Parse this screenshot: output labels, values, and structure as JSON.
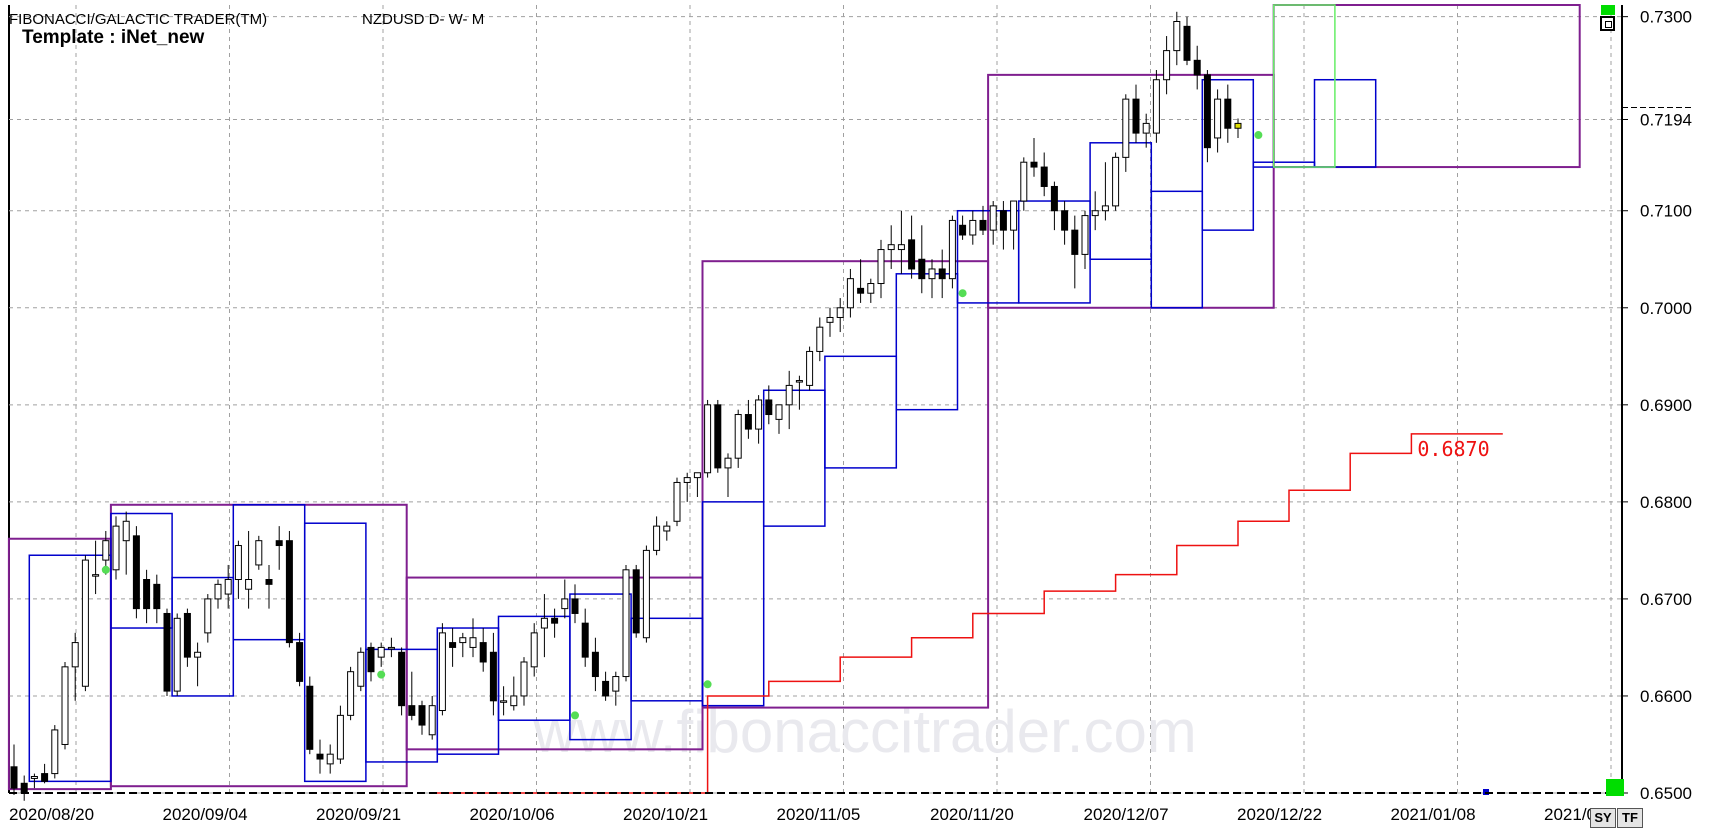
{
  "header": {
    "app_title": "FIBONACCI/GALACTIC TRADER(TM)",
    "symbol_info": "NZDUSD D- W- M",
    "template_label": "Template : iNet_new"
  },
  "watermark": "www.fibonaccitrader.com",
  "buttons": {
    "sy": "SY",
    "tf": "TF"
  },
  "colors": {
    "background": "#ffffff",
    "grid": "#a0a0a0",
    "bull_candle": "#ffffff",
    "bear_candle": "#000000",
    "box_daily": "#0000cc",
    "box_weekly": "#7f1f8f",
    "box_current": "#66ee66",
    "step_line": "#ee1111",
    "step_label": "#ee1111",
    "marker": "#55dd55",
    "current_candle": "#dddd00"
  },
  "chart_data": {
    "type": "candlestick",
    "y_axis": {
      "min": 0.65,
      "max": 0.7312,
      "ticks": [
        "0.7300",
        "0.7194",
        "0.7100",
        "0.7000",
        "0.6900",
        "0.6800",
        "0.6700",
        "0.6600",
        "0.6500"
      ],
      "last_price": 0.7194
    },
    "x_axis": {
      "labels": [
        "2020/08/20",
        "2020/09/04",
        "2020/09/21",
        "2020/10/06",
        "2020/10/21",
        "2020/11/05",
        "2020/11/20",
        "2020/12/07",
        "2020/12/22",
        "2021/01/08",
        "2021/0"
      ]
    },
    "grid": true,
    "candles": [
      [
        0.6527,
        0.655,
        0.6498,
        0.6505
      ],
      [
        0.651,
        0.6518,
        0.6492,
        0.65
      ],
      [
        0.6515,
        0.652,
        0.6505,
        0.6517
      ],
      [
        0.652,
        0.653,
        0.651,
        0.6512
      ],
      [
        0.652,
        0.657,
        0.6515,
        0.6565
      ],
      [
        0.655,
        0.6635,
        0.6545,
        0.663
      ],
      [
        0.663,
        0.6665,
        0.6595,
        0.6655
      ],
      [
        0.661,
        0.6745,
        0.6605,
        0.674
      ],
      [
        0.6725,
        0.676,
        0.6705,
        0.6725
      ],
      [
        0.674,
        0.677,
        0.6725,
        0.676
      ],
      [
        0.673,
        0.6785,
        0.672,
        0.6775
      ],
      [
        0.676,
        0.679,
        0.6725,
        0.678
      ],
      [
        0.6765,
        0.6775,
        0.668,
        0.669
      ],
      [
        0.672,
        0.673,
        0.6675,
        0.669
      ],
      [
        0.6715,
        0.6725,
        0.6675,
        0.669
      ],
      [
        0.6685,
        0.669,
        0.66,
        0.6605
      ],
      [
        0.6605,
        0.6685,
        0.66,
        0.668
      ],
      [
        0.6685,
        0.669,
        0.663,
        0.664
      ],
      [
        0.664,
        0.6655,
        0.661,
        0.6645
      ],
      [
        0.6665,
        0.6705,
        0.6655,
        0.67
      ],
      [
        0.67,
        0.672,
        0.669,
        0.6715
      ],
      [
        0.6705,
        0.6735,
        0.669,
        0.672
      ],
      [
        0.672,
        0.676,
        0.67,
        0.6755
      ],
      [
        0.671,
        0.677,
        0.669,
        0.672
      ],
      [
        0.6735,
        0.6765,
        0.673,
        0.676
      ],
      [
        0.672,
        0.6735,
        0.669,
        0.6715
      ],
      [
        0.676,
        0.6775,
        0.673,
        0.6755
      ],
      [
        0.676,
        0.677,
        0.665,
        0.6655
      ],
      [
        0.6655,
        0.6665,
        0.661,
        0.6615
      ],
      [
        0.661,
        0.662,
        0.654,
        0.6545
      ],
      [
        0.654,
        0.6555,
        0.652,
        0.6535
      ],
      [
        0.653,
        0.655,
        0.652,
        0.654
      ],
      [
        0.6535,
        0.659,
        0.653,
        0.658
      ],
      [
        0.658,
        0.663,
        0.6575,
        0.6625
      ],
      [
        0.661,
        0.665,
        0.6605,
        0.6645
      ],
      [
        0.665,
        0.6655,
        0.6615,
        0.6625
      ],
      [
        0.664,
        0.6655,
        0.663,
        0.665
      ],
      [
        0.665,
        0.666,
        0.664,
        0.665
      ],
      [
        0.6645,
        0.665,
        0.658,
        0.659
      ],
      [
        0.659,
        0.6625,
        0.6575,
        0.658
      ],
      [
        0.659,
        0.6595,
        0.656,
        0.657
      ],
      [
        0.656,
        0.66,
        0.6555,
        0.659
      ],
      [
        0.6585,
        0.6675,
        0.658,
        0.6665
      ],
      [
        0.6655,
        0.667,
        0.663,
        0.665
      ],
      [
        0.6655,
        0.6665,
        0.664,
        0.666
      ],
      [
        0.665,
        0.668,
        0.664,
        0.666
      ],
      [
        0.6655,
        0.667,
        0.6625,
        0.6635
      ],
      [
        0.6645,
        0.6665,
        0.658,
        0.6595
      ],
      [
        0.6595,
        0.661,
        0.658,
        0.6595
      ],
      [
        0.659,
        0.662,
        0.6585,
        0.66
      ],
      [
        0.66,
        0.664,
        0.659,
        0.6635
      ],
      [
        0.663,
        0.6675,
        0.662,
        0.6665
      ],
      [
        0.667,
        0.6705,
        0.664,
        0.668
      ],
      [
        0.668,
        0.669,
        0.666,
        0.6675
      ],
      [
        0.669,
        0.672,
        0.668,
        0.67
      ],
      [
        0.67,
        0.6715,
        0.6675,
        0.6685
      ],
      [
        0.6675,
        0.669,
        0.663,
        0.664
      ],
      [
        0.6645,
        0.666,
        0.6605,
        0.662
      ],
      [
        0.6615,
        0.6625,
        0.6595,
        0.66
      ],
      [
        0.6605,
        0.6625,
        0.659,
        0.662
      ],
      [
        0.662,
        0.6735,
        0.6615,
        0.673
      ],
      [
        0.673,
        0.6735,
        0.666,
        0.6665
      ],
      [
        0.666,
        0.6755,
        0.6655,
        0.675
      ],
      [
        0.675,
        0.6785,
        0.6745,
        0.6775
      ],
      [
        0.677,
        0.678,
        0.676,
        0.6775
      ],
      [
        0.678,
        0.6825,
        0.6775,
        0.682
      ],
      [
        0.682,
        0.683,
        0.68,
        0.6825
      ],
      [
        0.6825,
        0.683,
        0.6805,
        0.683
      ],
      [
        0.683,
        0.6905,
        0.6825,
        0.69
      ],
      [
        0.69,
        0.6905,
        0.683,
        0.6835
      ],
      [
        0.6835,
        0.685,
        0.6805,
        0.6845
      ],
      [
        0.6845,
        0.6895,
        0.6835,
        0.689
      ],
      [
        0.689,
        0.6905,
        0.6865,
        0.6875
      ],
      [
        0.6875,
        0.691,
        0.686,
        0.6905
      ],
      [
        0.6905,
        0.692,
        0.688,
        0.689
      ],
      [
        0.6885,
        0.69,
        0.687,
        0.69
      ],
      [
        0.69,
        0.6935,
        0.6875,
        0.692
      ],
      [
        0.6925,
        0.693,
        0.6895,
        0.6925
      ],
      [
        0.692,
        0.696,
        0.6915,
        0.6955
      ],
      [
        0.6955,
        0.699,
        0.6945,
        0.698
      ],
      [
        0.6985,
        0.7,
        0.697,
        0.699
      ],
      [
        0.699,
        0.701,
        0.6975,
        0.7
      ],
      [
        0.7,
        0.704,
        0.699,
        0.703
      ],
      [
        0.702,
        0.705,
        0.7005,
        0.7015
      ],
      [
        0.7015,
        0.703,
        0.7005,
        0.7025
      ],
      [
        0.7025,
        0.707,
        0.701,
        0.706
      ],
      [
        0.706,
        0.7085,
        0.704,
        0.7065
      ],
      [
        0.706,
        0.71,
        0.7035,
        0.7065
      ],
      [
        0.707,
        0.7095,
        0.703,
        0.704
      ],
      [
        0.705,
        0.7085,
        0.7015,
        0.703
      ],
      [
        0.703,
        0.705,
        0.701,
        0.704
      ],
      [
        0.704,
        0.706,
        0.701,
        0.703
      ],
      [
        0.703,
        0.7095,
        0.702,
        0.709
      ],
      [
        0.7085,
        0.7095,
        0.707,
        0.7075
      ],
      [
        0.7075,
        0.71,
        0.7065,
        0.709
      ],
      [
        0.709,
        0.7105,
        0.7075,
        0.708
      ],
      [
        0.708,
        0.711,
        0.7065,
        0.7105
      ],
      [
        0.71,
        0.711,
        0.706,
        0.708
      ],
      [
        0.708,
        0.711,
        0.706,
        0.711
      ],
      [
        0.711,
        0.7155,
        0.71,
        0.715
      ],
      [
        0.715,
        0.7175,
        0.7135,
        0.7145
      ],
      [
        0.7145,
        0.716,
        0.7115,
        0.7125
      ],
      [
        0.7125,
        0.713,
        0.708,
        0.71
      ],
      [
        0.71,
        0.711,
        0.7065,
        0.708
      ],
      [
        0.708,
        0.7095,
        0.702,
        0.7055
      ],
      [
        0.7055,
        0.71,
        0.704,
        0.7095
      ],
      [
        0.7095,
        0.712,
        0.708,
        0.71
      ],
      [
        0.71,
        0.715,
        0.709,
        0.7105
      ],
      [
        0.7105,
        0.716,
        0.71,
        0.7155
      ],
      [
        0.7155,
        0.722,
        0.714,
        0.7215
      ],
      [
        0.7215,
        0.723,
        0.717,
        0.718
      ],
      [
        0.718,
        0.72,
        0.7165,
        0.719
      ],
      [
        0.718,
        0.7245,
        0.717,
        0.7235
      ],
      [
        0.7235,
        0.728,
        0.722,
        0.7265
      ],
      [
        0.7265,
        0.7305,
        0.725,
        0.7295
      ],
      [
        0.729,
        0.73,
        0.725,
        0.7255
      ],
      [
        0.7255,
        0.727,
        0.7225,
        0.724
      ],
      [
        0.724,
        0.7245,
        0.715,
        0.7165
      ],
      [
        0.7175,
        0.7225,
        0.716,
        0.7215
      ],
      [
        0.7215,
        0.723,
        0.717,
        0.7185
      ],
      [
        0.7185,
        0.7195,
        0.7175,
        0.719
      ]
    ],
    "boxes_daily": [
      {
        "x0": 2,
        "x1": 10,
        "top": 0.6745,
        "bottom": 0.6512
      },
      {
        "x0": 10,
        "x1": 16,
        "top": 0.6788,
        "bottom": 0.667
      },
      {
        "x0": 16,
        "x1": 22,
        "top": 0.6722,
        "bottom": 0.66
      },
      {
        "x0": 22,
        "x1": 29,
        "top": 0.6797,
        "bottom": 0.6658
      },
      {
        "x0": 29,
        "x1": 35,
        "top": 0.6778,
        "bottom": 0.6512
      },
      {
        "x0": 35,
        "x1": 42,
        "top": 0.6648,
        "bottom": 0.6532
      },
      {
        "x0": 42,
        "x1": 48,
        "top": 0.667,
        "bottom": 0.654
      },
      {
        "x0": 48,
        "x1": 55,
        "top": 0.6682,
        "bottom": 0.6575
      },
      {
        "x0": 55,
        "x1": 61,
        "top": 0.6705,
        "bottom": 0.6555
      },
      {
        "x0": 61,
        "x1": 68,
        "top": 0.668,
        "bottom": 0.6595
      },
      {
        "x0": 68,
        "x1": 74,
        "top": 0.68,
        "bottom": 0.659
      },
      {
        "x0": 74,
        "x1": 80,
        "top": 0.6915,
        "bottom": 0.6775
      },
      {
        "x0": 80,
        "x1": 87,
        "top": 0.695,
        "bottom": 0.6835
      },
      {
        "x0": 87,
        "x1": 93,
        "top": 0.7035,
        "bottom": 0.6895
      },
      {
        "x0": 93,
        "x1": 99,
        "top": 0.71,
        "bottom": 0.7005
      },
      {
        "x0": 99,
        "x1": 106,
        "top": 0.711,
        "bottom": 0.7005
      },
      {
        "x0": 106,
        "x1": 112,
        "top": 0.717,
        "bottom": 0.705
      },
      {
        "x0": 112,
        "x1": 117,
        "top": 0.712,
        "bottom": 0.7
      },
      {
        "x0": 117,
        "x1": 122,
        "top": 0.7235,
        "bottom": 0.708
      },
      {
        "x0": 122,
        "x1": 128,
        "top": 0.715,
        "bottom": 0.7145
      },
      {
        "x0": 128,
        "x1": 134,
        "top": 0.7235,
        "bottom": 0.7145
      }
    ],
    "boxes_weekly": [
      {
        "x0": 0,
        "x1": 10,
        "top": 0.6762,
        "bottom": 0.6504
      },
      {
        "x0": 10,
        "x1": 39,
        "top": 0.6797,
        "bottom": 0.6507
      },
      {
        "x0": 39,
        "x1": 68,
        "top": 0.6722,
        "bottom": 0.6545
      },
      {
        "x0": 68,
        "x1": 96,
        "top": 0.7048,
        "bottom": 0.6588
      },
      {
        "x0": 96,
        "x1": 124,
        "top": 0.724,
        "bottom": 0.7
      },
      {
        "x0": 124,
        "x1": 154,
        "top": 0.7312,
        "bottom": 0.7145
      }
    ],
    "box_current": {
      "x0": 124,
      "x1": 130,
      "top": 0.7312,
      "bottom": 0.7145
    },
    "step_line": {
      "x": [
        41,
        68,
        74,
        81,
        88,
        94,
        101,
        108,
        114,
        120,
        125,
        131,
        137,
        144
      ],
      "y": [
        0.65,
        0.66,
        0.6615,
        0.664,
        0.666,
        0.6685,
        0.6708,
        0.6725,
        0.6755,
        0.678,
        0.6812,
        0.685,
        0.687,
        0.687
      ]
    },
    "step_label": "0.6870"
  }
}
